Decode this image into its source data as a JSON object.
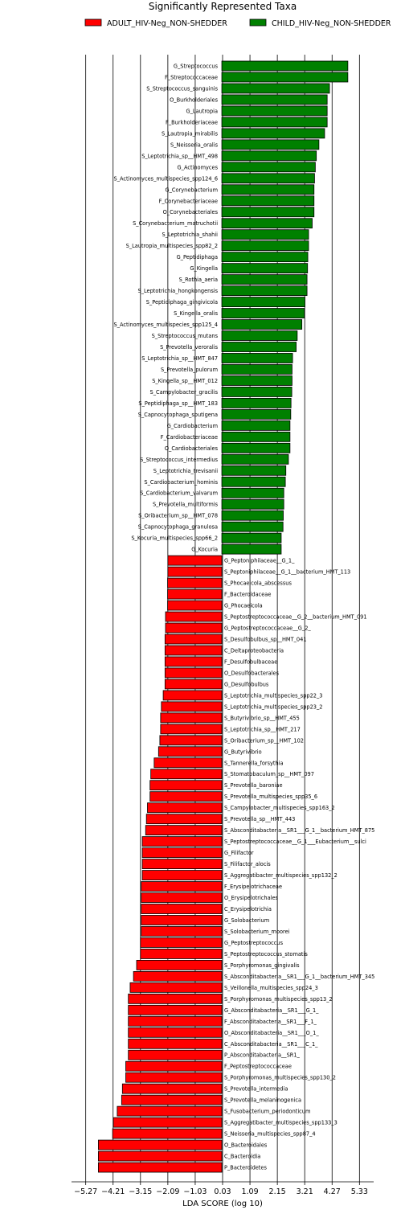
{
  "chart_data": {
    "type": "bar",
    "orientation": "horizontal",
    "title": "Significantly Represented Taxa",
    "xlabel": "LDA SCORE (log 10)",
    "ylabel": "",
    "xlim": [
      -5.82,
      5.88
    ],
    "xticks": [
      -5.27,
      -4.21,
      -3.15,
      -2.09,
      -1.03,
      0.03,
      1.09,
      2.15,
      3.21,
      4.27,
      5.33
    ],
    "xtick_labels": [
      "−5.27",
      "−4.21",
      "−3.15",
      "−2.09",
      "−1.03",
      "0.03",
      "1.09",
      "2.15",
      "3.21",
      "4.27",
      "5.33"
    ],
    "grid": "vertical",
    "legend_placement": "top",
    "series": [
      {
        "name": "ADULT_HIV-Neg_NON-SHEDDER",
        "color": "#ff0000"
      },
      {
        "name": "CHILD_HIV-Neg_NON-SHEDDER",
        "color": "#008000"
      }
    ],
    "bars": [
      {
        "label": "G_Streptococcus",
        "value": 4.88,
        "group": 1
      },
      {
        "label": "F_Streptococcaceae",
        "value": 4.88,
        "group": 1
      },
      {
        "label": "S_Streptococcus_sanguinis",
        "value": 4.17,
        "group": 1
      },
      {
        "label": "O_Burkholderiales",
        "value": 4.08,
        "group": 1
      },
      {
        "label": "G_Lautropia",
        "value": 4.08,
        "group": 1
      },
      {
        "label": "F_Burkholderiaceae",
        "value": 4.08,
        "group": 1
      },
      {
        "label": "S_Lautropia_mirabilis",
        "value": 3.98,
        "group": 1
      },
      {
        "label": "S_Neisseria_oralis",
        "value": 3.76,
        "group": 1
      },
      {
        "label": "S_Leptotrichia_sp__HMT_498",
        "value": 3.66,
        "group": 1
      },
      {
        "label": "G_Actinomyces",
        "value": 3.62,
        "group": 1
      },
      {
        "label": "S_Actinomyces_multispecies_spp124_6",
        "value": 3.59,
        "group": 1
      },
      {
        "label": "G_Corynebacterium",
        "value": 3.57,
        "group": 1
      },
      {
        "label": "F_Corynebacteriaceae",
        "value": 3.57,
        "group": 1
      },
      {
        "label": "O_Corynebacteriales",
        "value": 3.57,
        "group": 1
      },
      {
        "label": "S_Corynebacterium_matruchotii",
        "value": 3.5,
        "group": 1
      },
      {
        "label": "S_Leptotrichia_shahii",
        "value": 3.36,
        "group": 1
      },
      {
        "label": "S_Lautropia_multispecies_spp82_2",
        "value": 3.36,
        "group": 1
      },
      {
        "label": "G_Peptidiphaga",
        "value": 3.33,
        "group": 1
      },
      {
        "label": "G_Kingella",
        "value": 3.32,
        "group": 1
      },
      {
        "label": "S_Rothia_aeria",
        "value": 3.3,
        "group": 1
      },
      {
        "label": "S_Leptotrichia_hongkongensis",
        "value": 3.3,
        "group": 1
      },
      {
        "label": "S_Peptidiphaga_gingivicola",
        "value": 3.22,
        "group": 1
      },
      {
        "label": "S_Kingella_oralis",
        "value": 3.2,
        "group": 1
      },
      {
        "label": "S_Actinomyces_multispecies_spp125_4",
        "value": 3.1,
        "group": 1
      },
      {
        "label": "S_Streptococcus_mutans",
        "value": 2.92,
        "group": 1
      },
      {
        "label": "S_Prevotella_veroralis",
        "value": 2.88,
        "group": 1
      },
      {
        "label": "S_Leptotrichia_sp__HMT_847",
        "value": 2.74,
        "group": 1
      },
      {
        "label": "S_Prevotella_pulorum",
        "value": 2.72,
        "group": 1
      },
      {
        "label": "S_Kingella_sp__HMT_012",
        "value": 2.72,
        "group": 1
      },
      {
        "label": "S_Campylobacter_gracilis",
        "value": 2.71,
        "group": 1
      },
      {
        "label": "S_Peptidiphaga_sp__HMT_183",
        "value": 2.68,
        "group": 1
      },
      {
        "label": "S_Capnocytophaga_sputigena",
        "value": 2.67,
        "group": 1
      },
      {
        "label": "G_Cardiobacterium",
        "value": 2.64,
        "group": 1
      },
      {
        "label": "F_Cardiobacteriaceae",
        "value": 2.64,
        "group": 1
      },
      {
        "label": "O_Cardiobacteriales",
        "value": 2.64,
        "group": 1
      },
      {
        "label": "S_Streptococcus_intermedius",
        "value": 2.58,
        "group": 1
      },
      {
        "label": "S_Leptotrichia_trevisanii",
        "value": 2.48,
        "group": 1
      },
      {
        "label": "S_Cardiobacterium_hominis",
        "value": 2.46,
        "group": 1
      },
      {
        "label": "S_Cardiobacterium_valvarum",
        "value": 2.4,
        "group": 1
      },
      {
        "label": "S_Prevotella_multiformis",
        "value": 2.4,
        "group": 1
      },
      {
        "label": "S_Oribacterium_sp__HMT_078",
        "value": 2.38,
        "group": 1
      },
      {
        "label": "S_Capnocytophaga_granulosa",
        "value": 2.37,
        "group": 1
      },
      {
        "label": "S_Kocuria_multispecies_spp66_2",
        "value": 2.3,
        "group": 1
      },
      {
        "label": "G_Kocuria",
        "value": 2.3,
        "group": 1
      },
      {
        "label": "G_Peptoniphilaceae__G_1_",
        "value": -2.09,
        "group": 0
      },
      {
        "label": "S_Peptoniphilaceae__G_1__bacterium_HMT_113",
        "value": -2.09,
        "group": 0
      },
      {
        "label": "S_Phocaeicola_abscessus",
        "value": -2.1,
        "group": 0
      },
      {
        "label": "F_Bacteroidaceae",
        "value": -2.1,
        "group": 0
      },
      {
        "label": "G_Phocaeicola",
        "value": -2.1,
        "group": 0
      },
      {
        "label": "S_Peptostreptococcaceae__G_2__bacterium_HMT_091",
        "value": -2.18,
        "group": 0
      },
      {
        "label": "G_Peptostreptococcaceae__G_2_",
        "value": -2.18,
        "group": 0
      },
      {
        "label": "S_Desulfobulbus_sp__HMT_041",
        "value": -2.2,
        "group": 0
      },
      {
        "label": "C_Deltaproteobacteria",
        "value": -2.2,
        "group": 0
      },
      {
        "label": "F_Desulfobulbaceae",
        "value": -2.2,
        "group": 0
      },
      {
        "label": "O_Desulfobacterales",
        "value": -2.2,
        "group": 0
      },
      {
        "label": "G_Desulfobulbus",
        "value": -2.2,
        "group": 0
      },
      {
        "label": "S_Leptotrichia_multispecies_spp22_3",
        "value": -2.27,
        "group": 0
      },
      {
        "label": "S_Leptotrichia_multispecies_spp23_2",
        "value": -2.34,
        "group": 0
      },
      {
        "label": "S_Butyrivibrio_sp__HMT_455",
        "value": -2.37,
        "group": 0
      },
      {
        "label": "S_Leptotrichia_sp__HMT_217",
        "value": -2.37,
        "group": 0
      },
      {
        "label": "S_Oribacterium_sp__HMT_102",
        "value": -2.4,
        "group": 0
      },
      {
        "label": "G_Butyrivibrio",
        "value": -2.45,
        "group": 0
      },
      {
        "label": "S_Tannerella_forsythia",
        "value": -2.62,
        "group": 0
      },
      {
        "label": "S_Stomatobaculum_sp__HMT_097",
        "value": -2.75,
        "group": 0
      },
      {
        "label": "S_Prevotella_baroniae",
        "value": -2.78,
        "group": 0
      },
      {
        "label": "S_Prevotella_multispecies_spp35_6",
        "value": -2.78,
        "group": 0
      },
      {
        "label": "S_Campylobacter_multispecies_spp163_2",
        "value": -2.88,
        "group": 0
      },
      {
        "label": "S_Prevotella_sp__HMT_443",
        "value": -2.92,
        "group": 0
      },
      {
        "label": "S_Absconditabacteria__SR1___G_1__bacterium_HMT_875",
        "value": -2.95,
        "group": 0
      },
      {
        "label": "S_Peptostreptococcaceae__G_1___Eubacterium__sulci",
        "value": -3.08,
        "group": 0
      },
      {
        "label": "G_Filifactor",
        "value": -3.08,
        "group": 0
      },
      {
        "label": "S_Filifactor_alocis",
        "value": -3.08,
        "group": 0
      },
      {
        "label": "S_Aggregatibacter_multispecies_spp132_2",
        "value": -3.08,
        "group": 0
      },
      {
        "label": "F_Erysipelotrichaceae",
        "value": -3.12,
        "group": 0
      },
      {
        "label": "O_Erysipelotrichales",
        "value": -3.12,
        "group": 0
      },
      {
        "label": "C_Erysipelotrichia",
        "value": -3.12,
        "group": 0
      },
      {
        "label": "G_Solobacterium",
        "value": -3.12,
        "group": 0
      },
      {
        "label": "S_Solobacterium_moorei",
        "value": -3.12,
        "group": 0
      },
      {
        "label": "G_Peptostreptococcus",
        "value": -3.15,
        "group": 0
      },
      {
        "label": "S_Peptostreptococcus_stomatis",
        "value": -3.15,
        "group": 0
      },
      {
        "label": "S_Porphyromonas_gingivalis",
        "value": -3.3,
        "group": 0
      },
      {
        "label": "S_Absconditabacteria__SR1___G_1__bacterium_HMT_345",
        "value": -3.42,
        "group": 0
      },
      {
        "label": "S_Veillonella_multispecies_spp24_3",
        "value": -3.55,
        "group": 0
      },
      {
        "label": "S_Porphyromonas_multispecies_spp13_2",
        "value": -3.62,
        "group": 0
      },
      {
        "label": "G_Absconditabacteria__SR1___G_1_",
        "value": -3.62,
        "group": 0
      },
      {
        "label": "F_Absconditabacteria__SR1___F_1_",
        "value": -3.62,
        "group": 0
      },
      {
        "label": "O_Absconditabacteria__SR1___O_1_",
        "value": -3.62,
        "group": 0
      },
      {
        "label": "C_Absconditabacteria__SR1___C_1_",
        "value": -3.62,
        "group": 0
      },
      {
        "label": "P_Absconditabacteria__SR1_",
        "value": -3.62,
        "group": 0
      },
      {
        "label": "F_Peptostreptococcaceae",
        "value": -3.72,
        "group": 0
      },
      {
        "label": "S_Porphyromonas_multispecies_spp130_2",
        "value": -3.72,
        "group": 0
      },
      {
        "label": "S_Prevotella_intermedia",
        "value": -3.85,
        "group": 0
      },
      {
        "label": "S_Prevotella_melaninogenica",
        "value": -3.88,
        "group": 0
      },
      {
        "label": "S_Fusobacterium_periodonticum",
        "value": -4.05,
        "group": 0
      },
      {
        "label": "S_Aggregatibacter_multispecies_spp133_3",
        "value": -4.2,
        "group": 0
      },
      {
        "label": "S_Neisseria_multispecies_spp87_4",
        "value": -4.23,
        "group": 0
      },
      {
        "label": "O_Bacteroidales",
        "value": -4.78,
        "group": 0
      },
      {
        "label": "C_Bacteroidia",
        "value": -4.78,
        "group": 0
      },
      {
        "label": "P_Bacteroidetes",
        "value": -4.78,
        "group": 0
      }
    ]
  }
}
